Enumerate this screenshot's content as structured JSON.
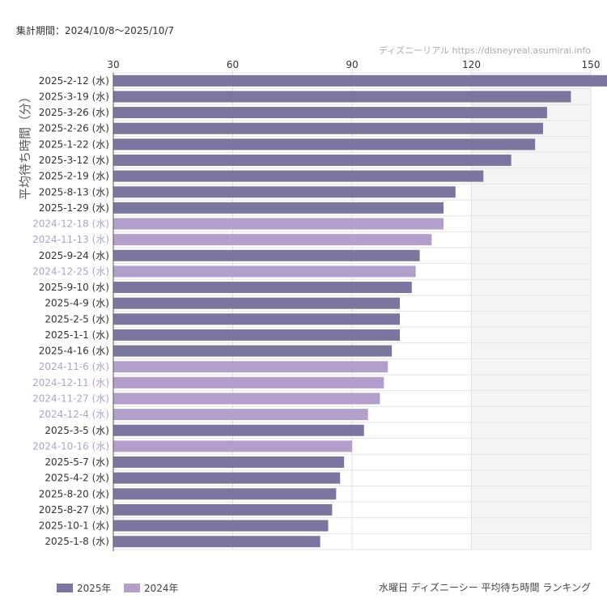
{
  "header": {
    "period": "集計期間：2024/10/8〜2025/10/7",
    "credit": "ディズニーリアル  https://disneyreal.asumirai.info"
  },
  "footer": {
    "title": "水曜日 ディズニーシー 平均待ち時間 ランキング"
  },
  "colors": {
    "y2025": "#7b76a0",
    "y2024": "#b49fcc",
    "grid": "#e2e2e2",
    "shade": "#f4f4f4",
    "axis": "#555555"
  },
  "chart_data": {
    "type": "bar",
    "orientation": "horizontal",
    "ylabel": "平均待ち時間（分）",
    "xlim": [
      30,
      150
    ],
    "xticks": [
      30,
      60,
      90,
      120,
      150
    ],
    "shaded_range": [
      120,
      150
    ],
    "grid": true,
    "legend_position": "bottom-left",
    "legend": [
      {
        "key": "2025",
        "label": "2025年",
        "color": "#7b76a0"
      },
      {
        "key": "2024",
        "label": "2024年",
        "color": "#b49fcc"
      }
    ],
    "categories": [
      "2025-2-12 (水)",
      "2025-3-19 (水)",
      "2025-3-26 (水)",
      "2025-2-26 (水)",
      "2025-1-22 (水)",
      "2025-3-12 (水)",
      "2025-2-19 (水)",
      "2025-8-13 (水)",
      "2025-1-29 (水)",
      "2024-12-18 (水)",
      "2024-11-13 (水)",
      "2025-9-24 (水)",
      "2024-12-25 (水)",
      "2025-9-10 (水)",
      "2025-4-9 (水)",
      "2025-2-5 (水)",
      "2025-1-1 (水)",
      "2025-4-16 (水)",
      "2024-11-6 (水)",
      "2024-12-11 (水)",
      "2024-11-27 (水)",
      "2024-12-4 (水)",
      "2025-3-5 (水)",
      "2024-10-16 (水)",
      "2025-5-7 (水)",
      "2025-4-2 (水)",
      "2025-8-20 (水)",
      "2025-8-27 (水)",
      "2025-10-1 (水)",
      "2025-1-8 (水)"
    ],
    "years": [
      "2025",
      "2025",
      "2025",
      "2025",
      "2025",
      "2025",
      "2025",
      "2025",
      "2025",
      "2024",
      "2024",
      "2025",
      "2024",
      "2025",
      "2025",
      "2025",
      "2025",
      "2025",
      "2024",
      "2024",
      "2024",
      "2024",
      "2025",
      "2024",
      "2025",
      "2025",
      "2025",
      "2025",
      "2025",
      "2025"
    ],
    "values": [
      155,
      145,
      139,
      138,
      136,
      130,
      123,
      116,
      113,
      113,
      110,
      107,
      106,
      105,
      102,
      102,
      102,
      100,
      99,
      98,
      97,
      94,
      93,
      90,
      88,
      87,
      86,
      85,
      84,
      82
    ]
  }
}
